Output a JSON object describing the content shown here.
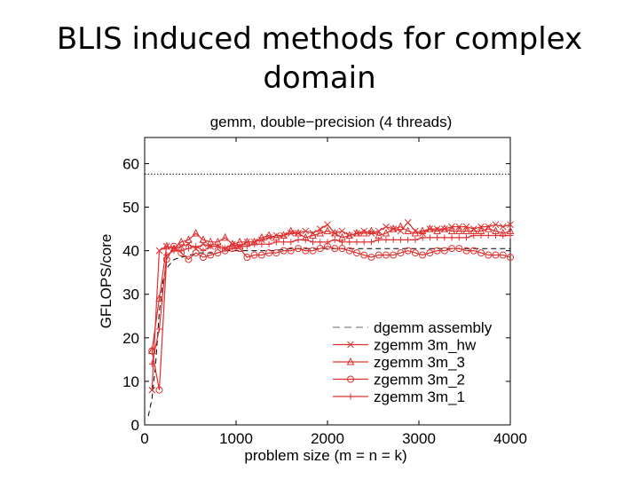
{
  "slide": {
    "title": "BLIS induced methods for complex domain"
  },
  "chart_data": {
    "type": "line",
    "title": "gemm, double−precision (4 threads)",
    "xlabel": "problem size (m = n = k)",
    "ylabel": "GFLOPS/core",
    "xlim": [
      0,
      4000
    ],
    "ylim": [
      0,
      66
    ],
    "x_ticks": [
      "0",
      "1000",
      "2000",
      "3000",
      "4000"
    ],
    "y_ticks": [
      "0",
      "10",
      "20",
      "30",
      "40",
      "50",
      "60"
    ],
    "grid": false,
    "legend_position": "lower-right",
    "peak_line": 57.6,
    "series": [
      {
        "name": "dgemm assembly",
        "color": "#000000",
        "style": "dashed",
        "marker": "none",
        "x": [
          40,
          80,
          120,
          160,
          200,
          240,
          280,
          320,
          400,
          500,
          600,
          700,
          800,
          900,
          1000,
          1200,
          1400,
          1600,
          1800,
          2000,
          2200,
          2400,
          2600,
          2800,
          3000,
          3200,
          3400,
          3600,
          3800,
          4000
        ],
        "y": [
          2,
          6,
          14,
          26,
          33,
          36,
          37,
          38,
          38.5,
          39,
          39.5,
          39.5,
          39.5,
          40,
          40,
          40,
          40,
          40.5,
          40.5,
          40.5,
          40.5,
          40.5,
          40.5,
          40.5,
          40.5,
          40.5,
          40.5,
          40.5,
          40.5,
          40.5
        ]
      },
      {
        "name": "zgemm 3m_hw",
        "color": "#e03030",
        "style": "solid",
        "marker": "x",
        "x": [
          80,
          160,
          240,
          320,
          400,
          480,
          560,
          640,
          720,
          800,
          880,
          960,
          1040,
          1120,
          1200,
          1280,
          1360,
          1440,
          1520,
          1600,
          1680,
          1760,
          1840,
          1920,
          2000,
          2080,
          2160,
          2240,
          2320,
          2400,
          2480,
          2560,
          2640,
          2720,
          2800,
          2880,
          2960,
          3040,
          3120,
          3200,
          3280,
          3360,
          3440,
          3520,
          3600,
          3680,
          3760,
          3840,
          3920,
          4000
        ],
        "y": [
          8,
          40,
          41,
          40.5,
          41,
          41.5,
          40.5,
          41.5,
          41,
          41,
          40.5,
          41.5,
          41,
          42,
          42,
          42.5,
          43,
          43.5,
          43.5,
          44,
          44,
          44.5,
          44,
          45,
          46,
          44,
          44.5,
          43.5,
          44,
          44.5,
          44,
          44.5,
          45.5,
          45,
          44.5,
          46.5,
          44.5,
          44,
          45,
          45,
          45,
          45.5,
          45.5,
          45.5,
          45,
          45.5,
          45.5,
          46,
          45.5,
          46
        ]
      },
      {
        "name": "zgemm 3m_3",
        "color": "#e03030",
        "style": "solid",
        "marker": "triangle",
        "x": [
          80,
          160,
          240,
          320,
          400,
          480,
          560,
          640,
          720,
          800,
          880,
          960,
          1040,
          1120,
          1200,
          1280,
          1360,
          1440,
          1520,
          1600,
          1680,
          1760,
          1840,
          1920,
          2000,
          2080,
          2160,
          2240,
          2320,
          2400,
          2480,
          2560,
          2640,
          2720,
          2800,
          2880,
          2960,
          3040,
          3120,
          3200,
          3280,
          3360,
          3440,
          3520,
          3600,
          3680,
          3760,
          3840,
          3920,
          4000
        ],
        "y": [
          17,
          29,
          41,
          40.5,
          42,
          42.5,
          44,
          42.5,
          42,
          42,
          43,
          41.5,
          42,
          42,
          42,
          43,
          43.5,
          43,
          43.5,
          44.5,
          44,
          43,
          43.5,
          44,
          44.5,
          44,
          43,
          43.5,
          44,
          44,
          44.5,
          43.5,
          44,
          45,
          45.5,
          44.5,
          44,
          44.5,
          45,
          44.5,
          45,
          44.5,
          44.5,
          44.5,
          44.5,
          44.5,
          45,
          44.5,
          44,
          44.5
        ]
      },
      {
        "name": "zgemm 3m_2",
        "color": "#e03030",
        "style": "solid",
        "marker": "circle",
        "x": [
          80,
          160,
          240,
          320,
          400,
          480,
          560,
          640,
          720,
          800,
          880,
          960,
          1040,
          1120,
          1200,
          1280,
          1360,
          1440,
          1520,
          1600,
          1680,
          1760,
          1840,
          1920,
          2000,
          2080,
          2160,
          2240,
          2320,
          2400,
          2480,
          2560,
          2640,
          2720,
          2800,
          2880,
          2960,
          3040,
          3120,
          3200,
          3280,
          3360,
          3440,
          3520,
          3600,
          3680,
          3760,
          3840,
          3920,
          4000
        ],
        "y": [
          17,
          8,
          38,
          41,
          39.5,
          38,
          39.5,
          38.5,
          39,
          39.5,
          40,
          40.5,
          40.5,
          38.5,
          39,
          39,
          39.5,
          39.5,
          40,
          40,
          40.5,
          40,
          40,
          40.5,
          41,
          40.5,
          40.5,
          40,
          39.5,
          39,
          38.5,
          39,
          39,
          39,
          39.5,
          40,
          39.5,
          39,
          39.5,
          40,
          40,
          40.5,
          40.5,
          40,
          40,
          39.5,
          39,
          39,
          39,
          38.5
        ]
      },
      {
        "name": "zgemm 3m_1",
        "color": "#e03030",
        "style": "solid",
        "marker": "plus",
        "x": [
          80,
          160,
          240,
          320,
          400,
          480,
          560,
          640,
          720,
          800,
          880,
          960,
          1040,
          1120,
          1200,
          1280,
          1360,
          1440,
          1520,
          1600,
          1680,
          1760,
          1840,
          1920,
          2000,
          2080,
          2160,
          2240,
          2320,
          2400,
          2480,
          2560,
          2640,
          2720,
          2800,
          2880,
          2960,
          3040,
          3120,
          3200,
          3280,
          3360,
          3440,
          3520,
          3600,
          3680,
          3760,
          3840,
          3920,
          4000
        ],
        "y": [
          14,
          22,
          39,
          40,
          40,
          40.5,
          41,
          40,
          41,
          41,
          40.5,
          40.5,
          41,
          41,
          41.5,
          41.5,
          41.5,
          42,
          42,
          42,
          42.5,
          42.5,
          42,
          42,
          42,
          42.5,
          42,
          42,
          42,
          42,
          42,
          42.5,
          42.5,
          42.5,
          42.5,
          42.5,
          42.5,
          43,
          43,
          43,
          43,
          43,
          43,
          43,
          43.5,
          43.5,
          43.5,
          43.5,
          43.5,
          43.5
        ]
      }
    ]
  }
}
